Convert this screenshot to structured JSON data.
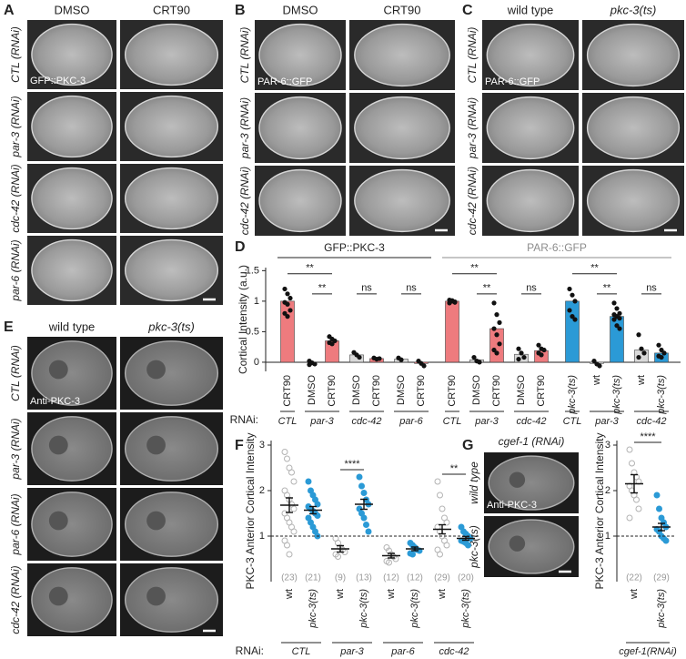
{
  "panels": {
    "A": {
      "label": "A",
      "columns": [
        {
          "text": "DMSO",
          "color": "#222222"
        },
        {
          "text": "CRT90",
          "color": "#e0262b"
        }
      ],
      "rows": [
        "CTL (RNAi)",
        "par-3 (RNAi)",
        "cdc-42 (RNAi)",
        "par-6 (RNAi)"
      ],
      "inset": "GFP::PKC-3"
    },
    "B": {
      "label": "B",
      "columns": [
        {
          "text": "DMSO",
          "color": "#222222"
        },
        {
          "text": "CRT90",
          "color": "#e0262b"
        }
      ],
      "rows": [
        "CTL (RNAi)",
        "par-3 (RNAi)",
        "cdc-42 (RNAi)"
      ],
      "inset": "PAR-6::GFP"
    },
    "C": {
      "label": "C",
      "columns": [
        {
          "text": "wild type",
          "color": "#222222"
        },
        {
          "text": "pkc-3(ts)",
          "color": "#2b9ad6",
          "italic": true
        }
      ],
      "rows": [
        "CTL (RNAi)",
        "par-3 (RNAi)",
        "cdc-42 (RNAi)"
      ],
      "inset": "PAR-6::GFP"
    },
    "E": {
      "label": "E",
      "columns": [
        {
          "text": "wild type",
          "color": "#222222"
        },
        {
          "text": "pkc-3(ts)",
          "color": "#2b9ad6",
          "italic": true
        }
      ],
      "rows": [
        "CTL (RNAi)",
        "par-3 (RNAi)",
        "par-6 (RNAi)",
        "cdc-42 (RNAi)"
      ],
      "inset": "Anti-PKC-3"
    },
    "G": {
      "label": "G",
      "title": "cgef-1 (RNAi)",
      "rows": [
        {
          "text": "wild type",
          "color": "#222222"
        },
        {
          "text": "pkc-3(ts)",
          "color": "#2b9ad6"
        }
      ],
      "inset": "Anti-PKC-3"
    }
  },
  "chart_data": [
    {
      "type": "bar",
      "label": "D",
      "ylabel": "Cortical Intensity (a.u.)",
      "ylim": [
        -0.15,
        1.55
      ],
      "yticks": [
        0,
        0.5,
        1,
        1.5
      ],
      "rnai_label": "RNAi:",
      "headers": [
        {
          "title": "GFP::PKC-3",
          "color": "#222222",
          "clusters": [
            {
              "sig": "**",
              "groups": [
                {
                  "rnai": "CTL",
                  "bars": [
                    {
                      "label": "CRT90",
                      "text_color": "#e0262b",
                      "color": "#ee7b7e",
                      "value": 1,
                      "points": [
                        1.2,
                        1.12,
                        1.05,
                        0.98,
                        0.95,
                        0.85,
                        0.8,
                        0.75
                      ]
                    }
                  ]
                },
                {
                  "rnai": "par-3",
                  "sig": "**",
                  "bars": [
                    {
                      "label": "DMSO",
                      "text_color": "#222222",
                      "color": "#d9d9d9",
                      "value": 0,
                      "points": [
                        0.02,
                        -0.01,
                        -0.03,
                        -0.04
                      ]
                    },
                    {
                      "label": "CRT90",
                      "text_color": "#e0262b",
                      "color": "#ee7b7e",
                      "value": 0.35,
                      "points": [
                        0.42,
                        0.38,
                        0.35,
                        0.32,
                        0.3
                      ]
                    }
                  ]
                },
                {
                  "rnai": "cdc-42",
                  "sig": "ns",
                  "bars": [
                    {
                      "label": "DMSO",
                      "text_color": "#222222",
                      "color": "#d9d9d9",
                      "value": 0.12,
                      "points": [
                        0.16,
                        0.12,
                        0.08
                      ]
                    },
                    {
                      "label": "CRT90",
                      "text_color": "#e0262b",
                      "color": "#ee7b7e",
                      "value": 0.06,
                      "points": [
                        0.07,
                        0.05,
                        0.06
                      ]
                    }
                  ]
                },
                {
                  "rnai": "par-6",
                  "sig": "ns",
                  "bars": [
                    {
                      "label": "DMSO",
                      "text_color": "#222222",
                      "color": "#d9d9d9",
                      "value": 0.05,
                      "points": [
                        0.07,
                        0.04
                      ]
                    },
                    {
                      "label": "CRT90",
                      "text_color": "#e0262b",
                      "color": "#ee7b7e",
                      "value": -0.02,
                      "points": [
                        0.02,
                        -0.02,
                        -0.06
                      ]
                    }
                  ]
                }
              ]
            }
          ]
        },
        {
          "title": "PAR-6::GFP",
          "color": "#8c8c8c",
          "clusters": [
            {
              "sig": "**",
              "groups": [
                {
                  "rnai": "CTL",
                  "bars": [
                    {
                      "label": "CRT90",
                      "text_color": "#e0262b",
                      "color": "#ee7b7e",
                      "value": 1,
                      "points": [
                        1.02,
                        1.0,
                        0.98,
                        0.97,
                        1.01,
                        0.99
                      ]
                    }
                  ]
                },
                {
                  "rnai": "par-3",
                  "sig": "**",
                  "bars": [
                    {
                      "label": "DMSO",
                      "text_color": "#222222",
                      "color": "#d9d9d9",
                      "value": 0.04,
                      "points": [
                        0.08,
                        0.02,
                        0.0
                      ]
                    },
                    {
                      "label": "CRT90",
                      "text_color": "#e0262b",
                      "color": "#ee7b7e",
                      "value": 0.55,
                      "points": [
                        0.97,
                        0.78,
                        0.65,
                        0.55,
                        0.45,
                        0.3,
                        0.2,
                        0.15
                      ]
                    }
                  ]
                },
                {
                  "rnai": "cdc-42",
                  "sig": "ns",
                  "bars": [
                    {
                      "label": "DMSO",
                      "text_color": "#222222",
                      "color": "#d9d9d9",
                      "value": 0.13,
                      "points": [
                        0.22,
                        0.15,
                        0.08,
                        0.05
                      ]
                    },
                    {
                      "label": "CRT90",
                      "text_color": "#e0262b",
                      "color": "#ee7b7e",
                      "value": 0.19,
                      "points": [
                        0.28,
                        0.22,
                        0.2,
                        0.15,
                        0.12
                      ]
                    }
                  ]
                }
              ]
            },
            {
              "sig": "**",
              "groups": [
                {
                  "rnai": "CTL",
                  "bars": [
                    {
                      "label": "pkc-3(ts)",
                      "italic": true,
                      "text_color": "#2b9ad6",
                      "color": "#2b9ad6",
                      "value": 1,
                      "points": [
                        1.2,
                        1.1,
                        1.0,
                        0.85,
                        0.75,
                        0.7
                      ]
                    }
                  ]
                },
                {
                  "rnai": "par-3",
                  "sig": "**",
                  "bars": [
                    {
                      "label": "wt",
                      "text_color": "#222222",
                      "color": "#d9d9d9",
                      "value": -0.02,
                      "points": [
                        0.02,
                        -0.03,
                        -0.06
                      ]
                    },
                    {
                      "label": "pkc-3(ts)",
                      "italic": true,
                      "text_color": "#2b9ad6",
                      "color": "#2b9ad6",
                      "value": 0.75,
                      "points": [
                        0.97,
                        0.88,
                        0.8,
                        0.78,
                        0.75,
                        0.72,
                        0.7,
                        0.6,
                        0.55
                      ]
                    }
                  ]
                },
                {
                  "rnai": "cdc-42",
                  "sig": "ns",
                  "bars": [
                    {
                      "label": "wt",
                      "text_color": "#222222",
                      "color": "#d9d9d9",
                      "value": 0.2,
                      "points": [
                        0.45,
                        0.22,
                        0.15,
                        0.08
                      ]
                    },
                    {
                      "label": "pkc-3(ts)",
                      "italic": true,
                      "text_color": "#2b9ad6",
                      "color": "#2b9ad6",
                      "value": 0.15,
                      "points": [
                        0.28,
                        0.2,
                        0.15,
                        0.1,
                        0.08
                      ]
                    }
                  ]
                }
              ]
            }
          ]
        }
      ]
    },
    {
      "type": "dot",
      "label": "F",
      "ylabel": "PKC-3 Anterior Cortical Intensity",
      "ylim": [
        0,
        3.1
      ],
      "yticks": [
        1,
        2,
        3
      ],
      "ref_line": 1,
      "rnai_label": "RNAi:",
      "groups": [
        {
          "rnai": "CTL",
          "items": [
            {
              "label": "wt",
              "text_color": "#222222",
              "color": "#b3b3b3",
              "style": "open",
              "mean": 1.68,
              "sem": 0.16,
              "n_label": "(23)",
              "points": [
                2.85,
                2.7,
                2.5,
                2.4,
                2.2,
                2.0,
                1.9,
                1.8,
                1.7,
                1.6,
                1.5,
                1.4,
                1.3,
                1.2,
                1.1,
                0.9,
                0.8,
                0.6
              ]
            },
            {
              "label": "pkc-3(ts)",
              "italic": true,
              "text_color": "#2b9ad6",
              "color": "#2b9ad6",
              "style": "filled",
              "mean": 1.57,
              "sem": 0.08,
              "n_label": "(21)",
              "points": [
                2.2,
                2.0,
                1.9,
                1.8,
                1.7,
                1.65,
                1.6,
                1.55,
                1.5,
                1.45,
                1.4,
                1.3,
                1.2,
                1.1,
                1.0
              ]
            }
          ]
        },
        {
          "rnai": "par-3",
          "sig": "****",
          "items": [
            {
              "label": "wt",
              "text_color": "#222222",
              "color": "#b3b3b3",
              "style": "open",
              "mean": 0.72,
              "sem": 0.07,
              "n_label": "(9)",
              "points": [
                0.95,
                0.85,
                0.75,
                0.7,
                0.65,
                0.6,
                0.55
              ]
            },
            {
              "label": "pkc-3(ts)",
              "italic": true,
              "text_color": "#2b9ad6",
              "color": "#2b9ad6",
              "style": "filled",
              "mean": 1.7,
              "sem": 0.11,
              "n_label": "(13)",
              "points": [
                2.3,
                2.1,
                1.95,
                1.8,
                1.7,
                1.6,
                1.5,
                1.4,
                1.25,
                1.1
              ]
            }
          ]
        },
        {
          "rnai": "par-6",
          "items": [
            {
              "label": "wt",
              "text_color": "#222222",
              "color": "#b3b3b3",
              "style": "open",
              "mean": 0.57,
              "sem": 0.05,
              "n_label": "(12)",
              "points": [
                0.75,
                0.68,
                0.6,
                0.55,
                0.5,
                0.45,
                0.42
              ]
            },
            {
              "label": "pkc-3(ts)",
              "italic": true,
              "text_color": "#2b9ad6",
              "color": "#2b9ad6",
              "style": "filled",
              "mean": 0.72,
              "sem": 0.04,
              "n_label": "(12)",
              "points": [
                0.85,
                0.8,
                0.75,
                0.7,
                0.68,
                0.62,
                0.6
              ]
            }
          ]
        },
        {
          "rnai": "cdc-42",
          "sig": "**",
          "items": [
            {
              "label": "wt",
              "text_color": "#222222",
              "color": "#b3b3b3",
              "style": "open",
              "mean": 1.15,
              "sem": 0.1,
              "n_label": "(29)",
              "points": [
                2.2,
                1.9,
                1.6,
                1.4,
                1.3,
                1.2,
                1.1,
                1.0,
                0.9,
                0.8,
                0.7,
                0.6
              ]
            },
            {
              "label": "pkc-3(ts)",
              "italic": true,
              "text_color": "#2b9ad6",
              "color": "#2b9ad6",
              "style": "filled",
              "mean": 0.95,
              "sem": 0.04,
              "n_label": "(20)",
              "points": [
                1.2,
                1.1,
                1.05,
                1.0,
                0.95,
                0.9,
                0.88,
                0.85,
                0.8
              ]
            }
          ]
        }
      ]
    },
    {
      "type": "dot",
      "ylabel": "PKC-3 Anterior Cortical Intensity",
      "ylim": [
        0,
        3.1
      ],
      "yticks": [
        1,
        2,
        3
      ],
      "ref_line": 1,
      "groups": [
        {
          "rnai": "cgef-1(RNAi)",
          "sig": "****",
          "items": [
            {
              "label": "wt",
              "text_color": "#222222",
              "color": "#b3b3b3",
              "style": "open",
              "mean": 2.15,
              "sem": 0.2,
              "n_label": "(22)",
              "points": [
                2.9,
                2.6,
                2.4,
                2.3,
                2.2,
                2.1,
                2.0,
                1.9,
                1.8,
                1.6,
                1.4
              ]
            },
            {
              "label": "pkc-3(ts)",
              "italic": true,
              "text_color": "#2b9ad6",
              "color": "#2b9ad6",
              "style": "filled",
              "mean": 1.2,
              "sem": 0.08,
              "n_label": "(29)",
              "points": [
                1.9,
                1.6,
                1.4,
                1.3,
                1.2,
                1.15,
                1.1,
                1.0,
                0.95,
                0.9
              ]
            }
          ]
        }
      ]
    }
  ]
}
